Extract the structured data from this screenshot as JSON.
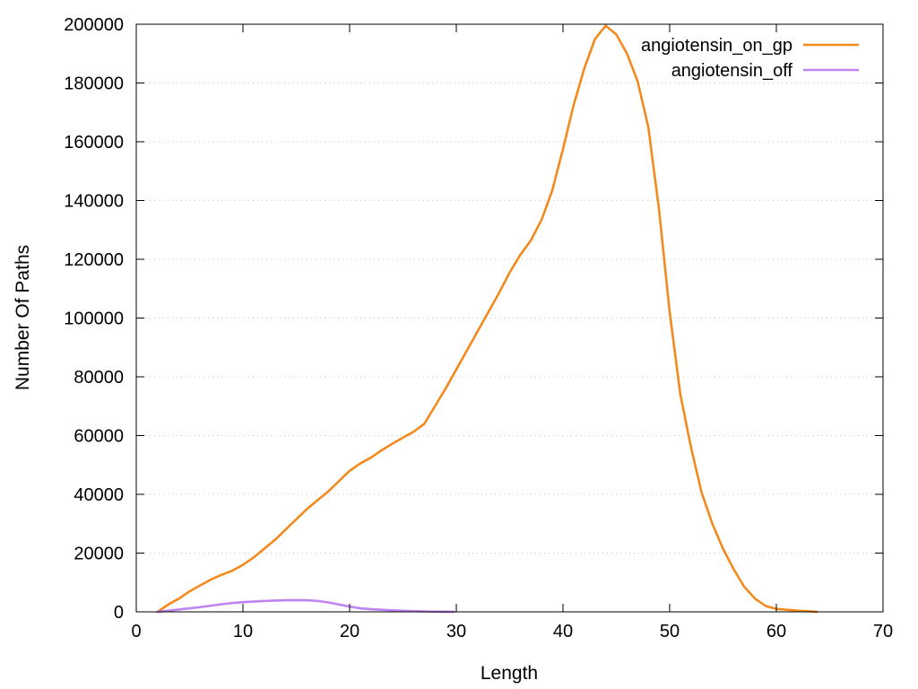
{
  "chart_data": {
    "type": "line",
    "title": "",
    "xlabel": "Length",
    "ylabel": "Number Of Paths",
    "xlim": [
      0,
      70
    ],
    "ylim": [
      0,
      200000
    ],
    "x_ticks": [
      0,
      10,
      20,
      30,
      40,
      50,
      60,
      70
    ],
    "y_ticks": [
      0,
      20000,
      40000,
      60000,
      80000,
      100000,
      120000,
      140000,
      160000,
      180000,
      200000
    ],
    "grid": "horizontal-dotted",
    "legend_position": "top-right",
    "series": [
      {
        "name": "angiotensin_on_gp",
        "color": "#f28a1e",
        "points": [
          [
            2,
            0
          ],
          [
            3,
            2500
          ],
          [
            4,
            4500
          ],
          [
            5,
            7000
          ],
          [
            6,
            9000
          ],
          [
            7,
            11000
          ],
          [
            8,
            12600
          ],
          [
            9,
            14000
          ],
          [
            10,
            16000
          ],
          [
            11,
            18500
          ],
          [
            12,
            21500
          ],
          [
            13,
            24500
          ],
          [
            14,
            28000
          ],
          [
            15,
            31500
          ],
          [
            16,
            35000
          ],
          [
            17,
            38000
          ],
          [
            18,
            41000
          ],
          [
            19,
            44500
          ],
          [
            20,
            48000
          ],
          [
            21,
            50500
          ],
          [
            22,
            52500
          ],
          [
            23,
            55000
          ],
          [
            24,
            57200
          ],
          [
            25,
            59300
          ],
          [
            26,
            61300
          ],
          [
            27,
            64000
          ],
          [
            28,
            70000
          ],
          [
            29,
            76000
          ],
          [
            30,
            82500
          ],
          [
            31,
            89000
          ],
          [
            32,
            95500
          ],
          [
            33,
            102000
          ],
          [
            34,
            108500
          ],
          [
            35,
            115500
          ],
          [
            36,
            121500
          ],
          [
            37,
            126500
          ],
          [
            38,
            133500
          ],
          [
            39,
            143500
          ],
          [
            40,
            157500
          ],
          [
            41,
            172500
          ],
          [
            42,
            185000
          ],
          [
            43,
            195000
          ],
          [
            44,
            199500
          ],
          [
            45,
            196500
          ],
          [
            46,
            190000
          ],
          [
            47,
            180500
          ],
          [
            48,
            165000
          ],
          [
            49,
            137000
          ],
          [
            50,
            102000
          ],
          [
            51,
            74000
          ],
          [
            52,
            56000
          ],
          [
            53,
            40500
          ],
          [
            54,
            30000
          ],
          [
            55,
            21500
          ],
          [
            56,
            14500
          ],
          [
            57,
            8500
          ],
          [
            58,
            4500
          ],
          [
            59,
            2000
          ],
          [
            60,
            1000
          ],
          [
            61,
            700
          ],
          [
            62,
            400
          ],
          [
            63,
            200
          ],
          [
            63.8,
            0
          ]
        ]
      },
      {
        "name": "angiotensin_off",
        "color": "#c084f0",
        "points": [
          [
            2,
            0
          ],
          [
            3,
            400
          ],
          [
            4,
            800
          ],
          [
            5,
            1200
          ],
          [
            6,
            1600
          ],
          [
            7,
            2100
          ],
          [
            8,
            2600
          ],
          [
            9,
            3000
          ],
          [
            10,
            3300
          ],
          [
            11,
            3500
          ],
          [
            12,
            3700
          ],
          [
            13,
            3850
          ],
          [
            14,
            3950
          ],
          [
            15,
            4000
          ],
          [
            16,
            3950
          ],
          [
            17,
            3700
          ],
          [
            18,
            3200
          ],
          [
            19,
            2500
          ],
          [
            20,
            1800
          ],
          [
            21,
            1200
          ],
          [
            22,
            900
          ],
          [
            23,
            700
          ],
          [
            24,
            500
          ],
          [
            25,
            350
          ],
          [
            26,
            250
          ],
          [
            27,
            150
          ],
          [
            28,
            80
          ],
          [
            29,
            30
          ],
          [
            29.8,
            0
          ]
        ]
      }
    ]
  }
}
